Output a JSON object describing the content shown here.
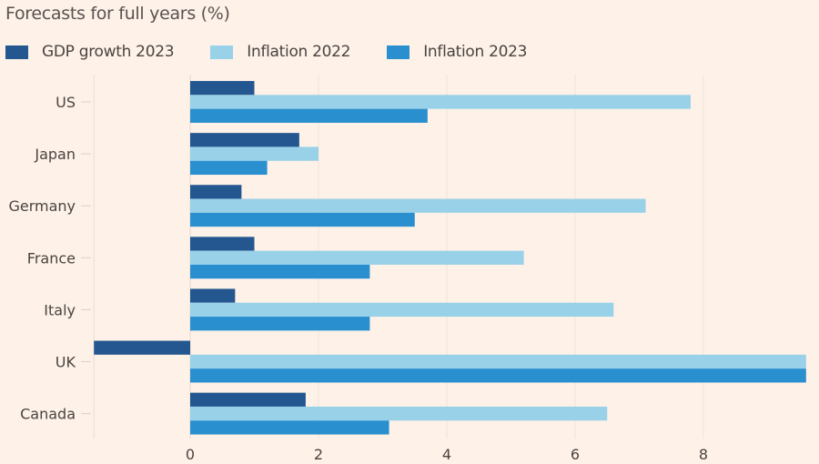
{
  "chart_data": {
    "type": "bar",
    "orientation": "horizontal",
    "title": "Forecasts for full years (%)",
    "xlabel": "",
    "ylabel": "",
    "categories": [
      "US",
      "Japan",
      "Germany",
      "France",
      "Italy",
      "UK",
      "Canada"
    ],
    "series": [
      {
        "name": "GDP growth 2023",
        "color": "#24578f",
        "values": [
          1.0,
          1.7,
          0.8,
          1.0,
          0.7,
          -1.5,
          1.8
        ]
      },
      {
        "name": "Inflation 2022",
        "color": "#98d1e8",
        "values": [
          7.8,
          2.0,
          7.1,
          5.2,
          6.6,
          9.6,
          6.5
        ]
      },
      {
        "name": "Inflation 2023",
        "color": "#2a8fce",
        "values": [
          3.7,
          1.2,
          3.5,
          2.8,
          2.8,
          9.6,
          3.1
        ]
      }
    ],
    "xlim": [
      -1.5,
      9.6
    ],
    "xticks": [
      0,
      2,
      4,
      6,
      8
    ],
    "grid": true,
    "legend_position": "top-left"
  }
}
